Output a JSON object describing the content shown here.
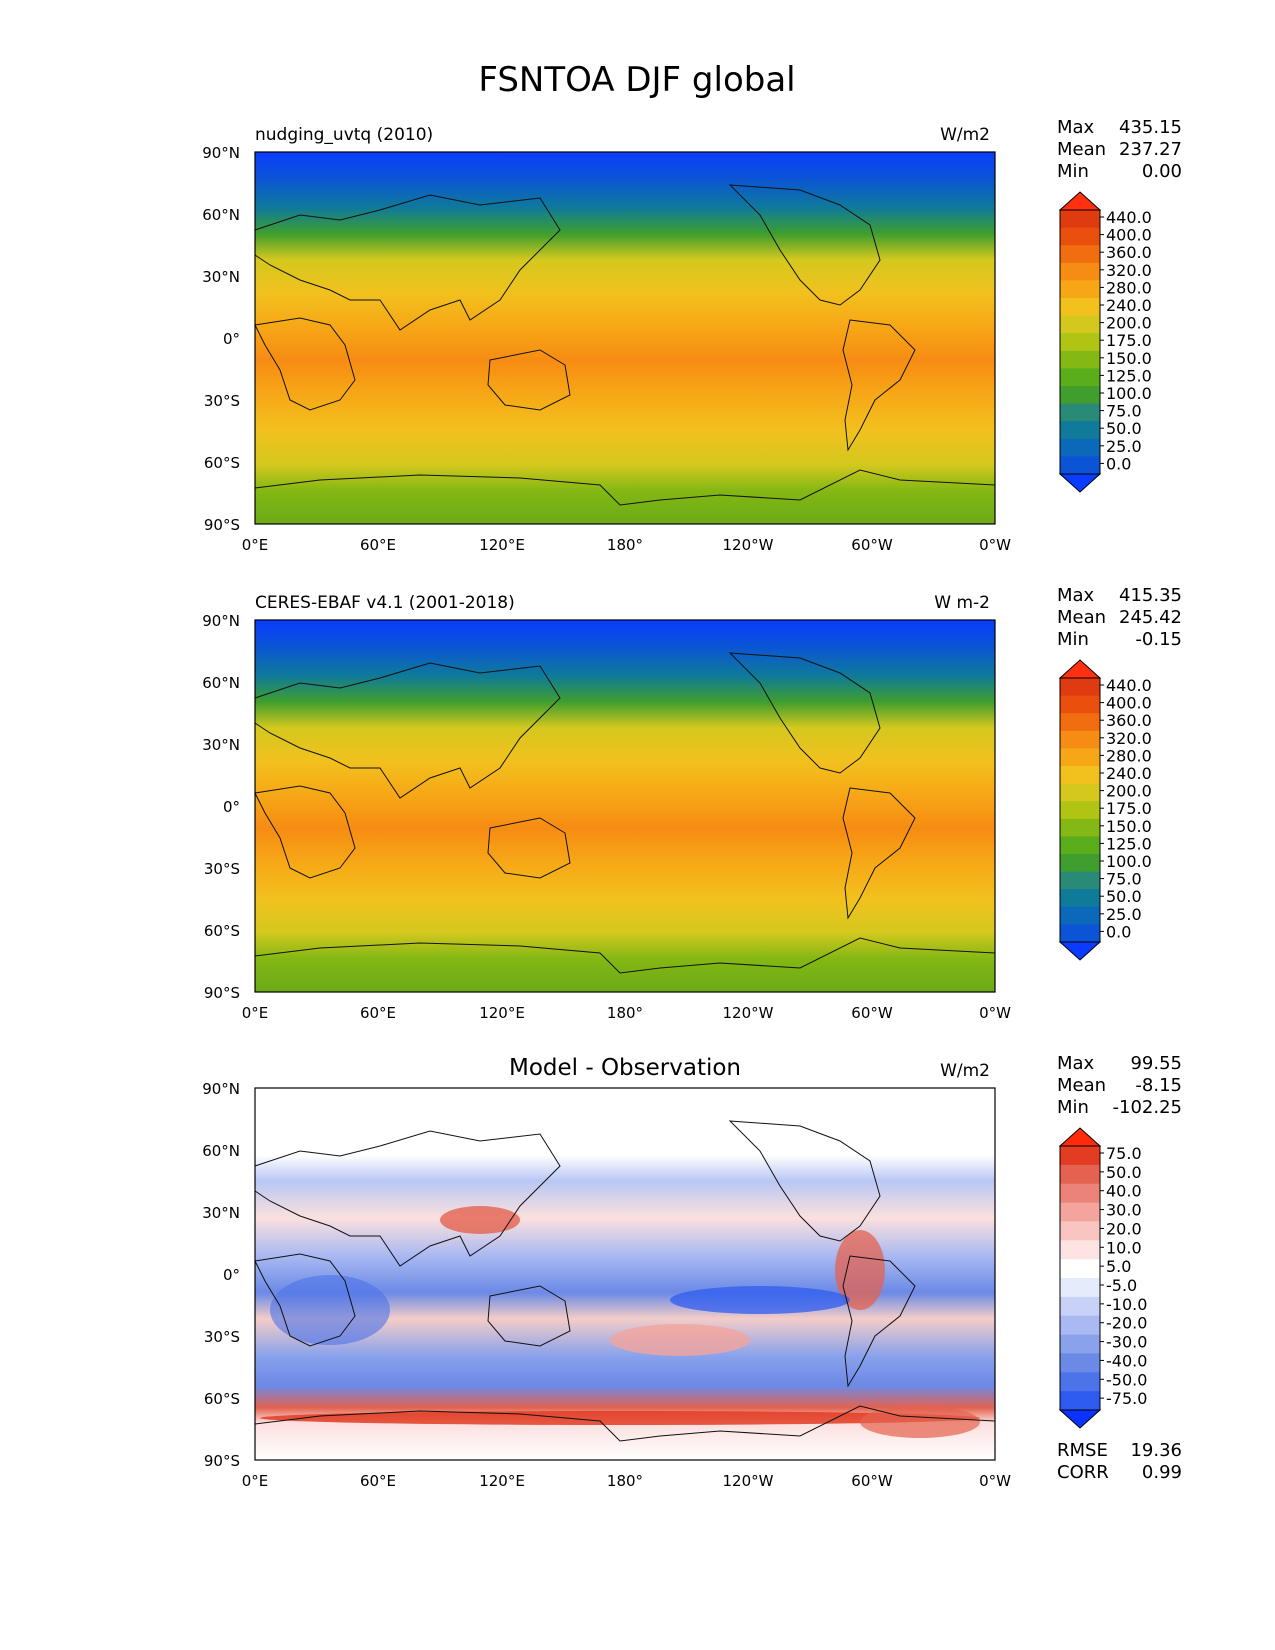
{
  "figure": {
    "title": "FSNTOA DJF global"
  },
  "axes": {
    "lat_ticks": [
      "90°N",
      "60°N",
      "30°N",
      "0°",
      "30°S",
      "60°S",
      "90°S"
    ],
    "lon_ticks": [
      "0°E",
      "60°E",
      "120°E",
      "180°",
      "120°W",
      "60°W",
      "0°W"
    ]
  },
  "colors": {
    "abs_scale": [
      "#0a3cff",
      "#0b54d6",
      "#0c68b8",
      "#0f7a9a",
      "#2a8a78",
      "#3f9e2e",
      "#5aae1c",
      "#84b814",
      "#b0c414",
      "#d4c81e",
      "#f2c11e",
      "#f7a716",
      "#f78c14",
      "#f26d10",
      "#ea4f0e",
      "#e03a10",
      "#ff3010"
    ],
    "diff_scale": [
      "#0a33ff",
      "#2f5cf0",
      "#4c73e8",
      "#6b8ae6",
      "#8aa2ec",
      "#aab9f2",
      "#c8d2f6",
      "#e6ebfb",
      "#ffffff",
      "#fde3e1",
      "#f9c5c0",
      "#f3a49c",
      "#ec8379",
      "#e4624f",
      "#e23c23",
      "#ff2a0a"
    ]
  },
  "chart_data": [
    {
      "type": "heatmap",
      "title": "nudging_uvtq (2010)",
      "units": "W/m2",
      "stats": [
        {
          "label": "Max",
          "value": "435.15"
        },
        {
          "label": "Mean",
          "value": "237.27"
        },
        {
          "label": "Min",
          "value": "0.00"
        }
      ],
      "colorbar_labels": [
        "440.0",
        "400.0",
        "360.0",
        "320.0",
        "280.0",
        "240.0",
        "200.0",
        "175.0",
        "150.0",
        "125.0",
        "100.0",
        "75.0",
        "50.0",
        "25.0",
        "0.0"
      ],
      "latitude_range": [
        -90,
        90
      ],
      "longitude_range": [
        0,
        360
      ]
    },
    {
      "type": "heatmap",
      "title": "CERES-EBAF v4.1 (2001-2018)",
      "units": "W m-2",
      "stats": [
        {
          "label": "Max",
          "value": "415.35"
        },
        {
          "label": "Mean",
          "value": "245.42"
        },
        {
          "label": "Min",
          "value": "-0.15"
        }
      ],
      "colorbar_labels": [
        "440.0",
        "400.0",
        "360.0",
        "320.0",
        "280.0",
        "240.0",
        "200.0",
        "175.0",
        "150.0",
        "125.0",
        "100.0",
        "75.0",
        "50.0",
        "25.0",
        "0.0"
      ],
      "latitude_range": [
        -90,
        90
      ],
      "longitude_range": [
        0,
        360
      ]
    },
    {
      "type": "heatmap",
      "title": "Model - Observation",
      "units": "W/m2",
      "stats": [
        {
          "label": "Max",
          "value": "99.55"
        },
        {
          "label": "Mean",
          "value": "-8.15"
        },
        {
          "label": "Min",
          "value": "-102.25"
        }
      ],
      "colorbar_labels": [
        "75.0",
        "50.0",
        "40.0",
        "30.0",
        "20.0",
        "10.0",
        "5.0",
        "-5.0",
        "-10.0",
        "-20.0",
        "-30.0",
        "-40.0",
        "-50.0",
        "-75.0"
      ],
      "extra_stats": [
        {
          "label": "RMSE",
          "value": "19.36"
        },
        {
          "label": "CORR",
          "value": "0.99"
        }
      ],
      "latitude_range": [
        -90,
        90
      ],
      "longitude_range": [
        0,
        360
      ]
    }
  ]
}
